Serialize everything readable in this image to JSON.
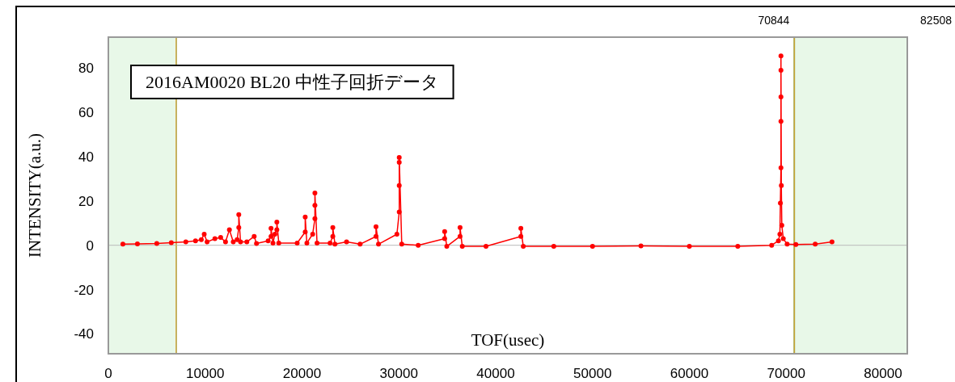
{
  "chart_data": {
    "type": "line",
    "xlabel": "TOF(usec)",
    "ylabel": "INTENSITY(a.u.)",
    "annotations": [
      "2016AM0020 BL20  中性子回折データ"
    ],
    "xlim": [
      0,
      82508
    ],
    "xticks": [
      0,
      10000,
      20000,
      30000,
      40000,
      50000,
      60000,
      70000,
      80000
    ],
    "ylim": [
      -49,
      94
    ],
    "yticks": [
      -40,
      -20,
      0,
      20,
      40,
      60,
      80
    ],
    "marker": "circle",
    "bands": [
      {
        "axis": "x",
        "from": 0,
        "to": 7000,
        "color": "#e8f8e8"
      },
      {
        "axis": "x",
        "from": 70844,
        "to": 82508,
        "color": "#e8f8e8",
        "label": "82508"
      }
    ],
    "ref_lines": [
      {
        "axis": "y",
        "value": 0,
        "color": "#bbbbbb"
      },
      {
        "axis": "x",
        "value": 7000,
        "color": "#e0b050"
      },
      {
        "axis": "x",
        "value": 70844,
        "color": "#c8a030",
        "label": "70844"
      }
    ],
    "series": [
      {
        "color": "#ff0000",
        "x": [
          1500,
          3000,
          5000,
          6500,
          8000,
          9000,
          9600,
          9900,
          10200,
          11000,
          11600,
          12100,
          12500,
          12900,
          13300,
          13470,
          13470,
          13650,
          14300,
          15060,
          15300,
          16500,
          16800,
          16800,
          17000,
          17200,
          17400,
          17400,
          17600,
          19500,
          20330,
          20330,
          20500,
          21100,
          21330,
          21330,
          21330,
          21550,
          22900,
          23180,
          23180,
          23400,
          24600,
          26000,
          27640,
          27640,
          27900,
          29800,
          30040,
          30040,
          30040,
          30040,
          30300,
          32000,
          34730,
          34730,
          34950,
          36320,
          36320,
          36550,
          39000,
          42600,
          42600,
          42850,
          46000,
          50000,
          55000,
          60000,
          65000,
          68500,
          69200,
          69350,
          69400,
          69460,
          69460,
          69460,
          69460,
          69460,
          69500,
          69550,
          69700,
          70100,
          71000,
          73000,
          74730
        ],
        "values": [
          0.5,
          0.6,
          0.8,
          1.2,
          1.5,
          2,
          2.5,
          5,
          1.5,
          3,
          3.5,
          1.5,
          7,
          1.5,
          2.5,
          8,
          13.8,
          1.5,
          1.5,
          4,
          0.8,
          2,
          4,
          7.6,
          1,
          5,
          7,
          10.5,
          1,
          1,
          6,
          12.7,
          1,
          5,
          12,
          18,
          23.6,
          1,
          1,
          4,
          8,
          0.5,
          1.5,
          0.5,
          4,
          8.4,
          0.5,
          5,
          15,
          27,
          37.5,
          39.6,
          0.5,
          0,
          3,
          6.2,
          -0.5,
          4,
          8,
          -0.5,
          -0.5,
          4,
          7.6,
          -0.5,
          -0.5,
          -0.5,
          -0.3,
          -0.5,
          -0.5,
          0,
          2,
          5,
          19,
          35,
          56,
          67,
          79,
          85.5,
          27,
          9,
          3,
          0.5,
          0.3,
          0.5,
          1.5
        ]
      }
    ]
  }
}
